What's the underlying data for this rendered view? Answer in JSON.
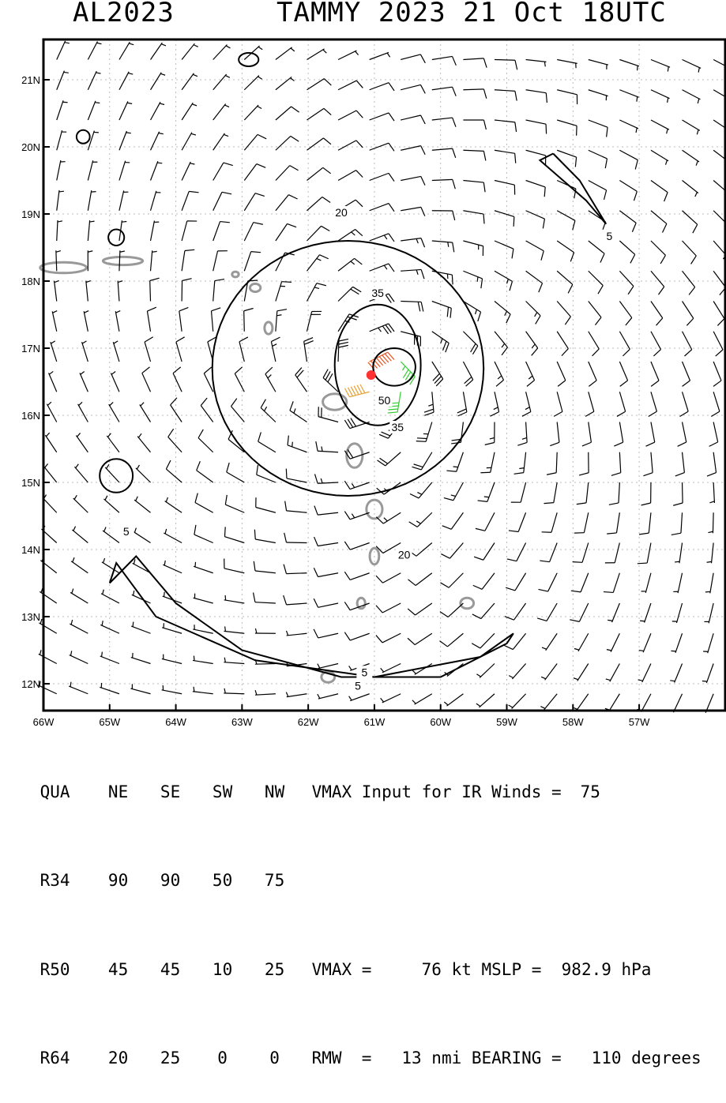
{
  "header": {
    "storm_id": "AL2023",
    "title": "TAMMY 2023 21 Oct 18UTC"
  },
  "map": {
    "lon_range": [
      -66.0,
      -55.7
    ],
    "lat_range": [
      11.6,
      21.6
    ],
    "lon_ticks": [
      {
        "value": -66,
        "label": "66W"
      },
      {
        "value": -65,
        "label": "65W"
      },
      {
        "value": -64,
        "label": "64W"
      },
      {
        "value": -63,
        "label": "63W"
      },
      {
        "value": -62,
        "label": "62W"
      },
      {
        "value": -61,
        "label": "61W"
      },
      {
        "value": -60,
        "label": "60W"
      },
      {
        "value": -59,
        "label": "59W"
      },
      {
        "value": -58,
        "label": "58W"
      },
      {
        "value": -57,
        "label": "57W"
      }
    ],
    "lat_ticks": [
      {
        "value": 12,
        "label": "12N"
      },
      {
        "value": 13,
        "label": "13N"
      },
      {
        "value": 14,
        "label": "14N"
      },
      {
        "value": 15,
        "label": "15N"
      },
      {
        "value": 16,
        "label": "16N"
      },
      {
        "value": 17,
        "label": "17N"
      },
      {
        "value": 18,
        "label": "18N"
      },
      {
        "value": 19,
        "label": "19N"
      },
      {
        "value": 20,
        "label": "20N"
      },
      {
        "value": 21,
        "label": "21N"
      }
    ],
    "storm_center": {
      "lon": -61.05,
      "lat": 16.6
    },
    "contour_labels": [
      {
        "text": "20",
        "lon": -61.5,
        "lat": 19.0
      },
      {
        "text": "35",
        "lon": -60.95,
        "lat": 17.8
      },
      {
        "text": "50",
        "lon": -60.85,
        "lat": 16.2
      },
      {
        "text": "35",
        "lon": -60.65,
        "lat": 15.8
      },
      {
        "text": "20",
        "lon": -60.55,
        "lat": 13.9
      },
      {
        "text": "5",
        "lon": -57.45,
        "lat": 18.65
      },
      {
        "text": "5",
        "lon": -64.75,
        "lat": 14.25
      },
      {
        "text": "5",
        "lon": -61.15,
        "lat": 12.15
      },
      {
        "text": "5",
        "lon": -61.25,
        "lat": 11.95
      }
    ],
    "colors": {
      "calm": "#000000",
      "ts": "#33cc33",
      "strong": "#e8a030",
      "hurricane": "#e85020",
      "center": "#ff3333",
      "land": "#999999"
    }
  },
  "info": {
    "rows": [
      [
        "QUA",
        "NE",
        "SE",
        "SW",
        "NW",
        "VMAX Input for IR Winds =",
        "75"
      ],
      [
        "R34",
        "90",
        "90",
        "50",
        "75",
        "",
        ""
      ],
      [
        "R50",
        "45",
        "45",
        "10",
        "25",
        "VMAX =     76 kt MSLP =  982.9 hPa",
        ""
      ],
      [
        "R64",
        "20",
        "25",
        "0",
        "0",
        "RMW  =   13 nmi BEARING =   110 degrees",
        ""
      ]
    ]
  }
}
